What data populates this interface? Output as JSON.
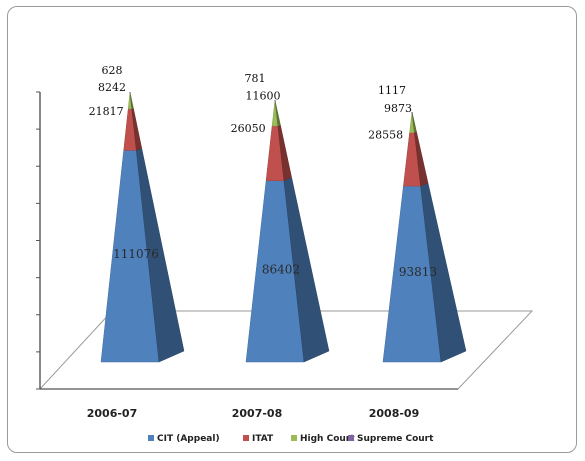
{
  "chart_data": {
    "type": "bar",
    "subtype": "stacked-3d-pyramid",
    "categories": [
      "2006-07",
      "2007-08",
      "2008-09"
    ],
    "series": [
      {
        "name": "CIT (Appeal)",
        "values": [
          111076,
          86402,
          93813
        ],
        "color": "#4f81bd"
      },
      {
        "name": "ITAT",
        "values": [
          21817,
          26050,
          28558
        ],
        "color": "#c0504d"
      },
      {
        "name": "High Court",
        "values": [
          8242,
          11600,
          9873
        ],
        "color": "#9bbb59"
      },
      {
        "name": "Supreme Court",
        "values": [
          628,
          781,
          1117
        ],
        "color": "#8064a2"
      }
    ],
    "legend_position": "bottom",
    "grid": false
  }
}
